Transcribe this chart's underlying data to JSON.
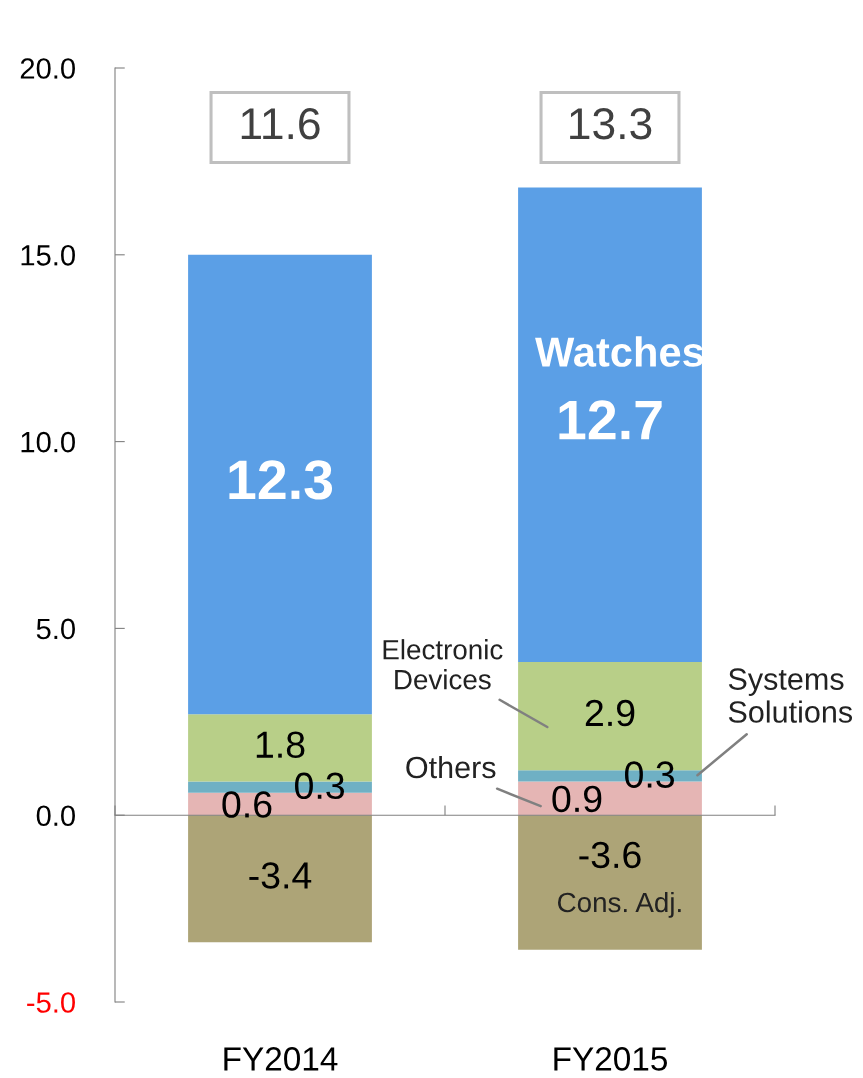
{
  "chart_data": {
    "type": "bar",
    "stacked": true,
    "categories": [
      "FY2014",
      "FY2015"
    ],
    "series": [
      {
        "name": "Others",
        "color": "#e5b5b4",
        "values": [
          0.6,
          0.9
        ]
      },
      {
        "name": "Systems Solutions",
        "color": "#6fb0c4",
        "values": [
          0.3,
          0.3
        ]
      },
      {
        "name": "Electronic Devices",
        "color": "#b8cf88",
        "values": [
          1.8,
          2.9
        ]
      },
      {
        "name": "Watches",
        "color": "#5b9fe6",
        "values": [
          12.3,
          12.7
        ]
      },
      {
        "name": "Cons. Adj.",
        "color": "#ada477",
        "values": [
          -3.4,
          -3.6
        ]
      }
    ],
    "ylim": [
      -5,
      20
    ],
    "yticks": [
      {
        "value": -5,
        "label": "-5.0"
      },
      {
        "value": 0,
        "label": "0.0"
      },
      {
        "value": 5,
        "label": "5.0"
      },
      {
        "value": 10,
        "label": "10.0"
      },
      {
        "value": 15,
        "label": "15.0"
      },
      {
        "value": 20,
        "label": "20.0"
      }
    ],
    "data_labels": true,
    "totals": [
      "11.6",
      "13.3"
    ]
  }
}
